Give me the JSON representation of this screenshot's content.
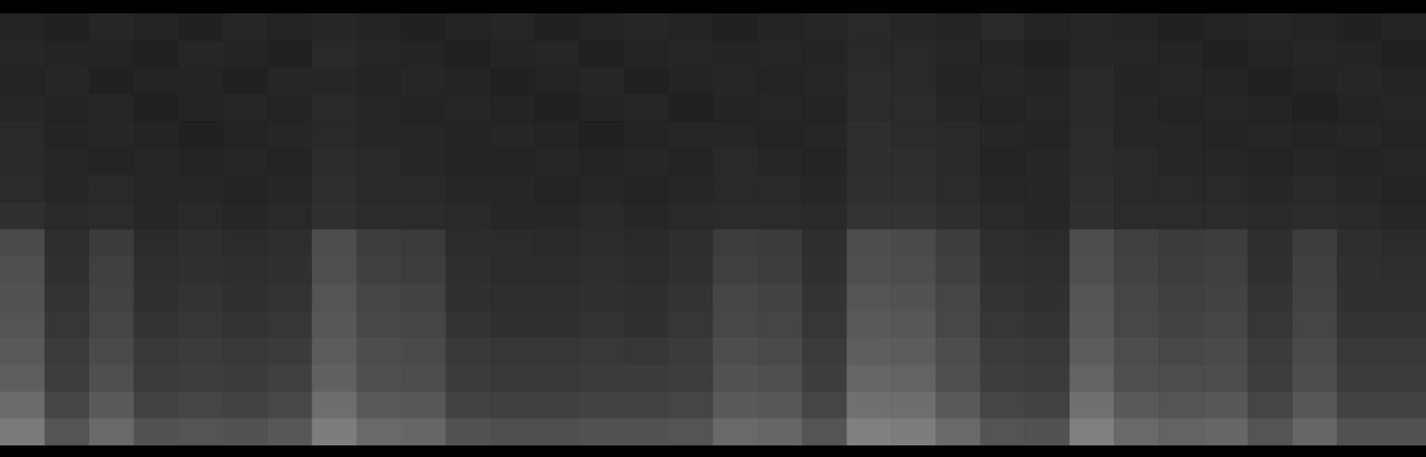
{
  "chart_data": {
    "type": "heatmap",
    "tick_labels": false,
    "zlim": [
      0,
      100
    ],
    "cells": [
      [
        14,
        13,
        15,
        14,
        13,
        15,
        14,
        15,
        14,
        13,
        14,
        15,
        13,
        14,
        15,
        14,
        13,
        14,
        15,
        16,
        15,
        14,
        16,
        14,
        15,
        14,
        13,
        14,
        15,
        14,
        13,
        14
      ],
      [
        15,
        14,
        14,
        13,
        15,
        14,
        13,
        16,
        15,
        14,
        13,
        14,
        15,
        13,
        14,
        15,
        14,
        15,
        14,
        16,
        16,
        15,
        14,
        13,
        15,
        15,
        14,
        13,
        14,
        15,
        14,
        13
      ],
      [
        14,
        15,
        13,
        14,
        14,
        13,
        15,
        15,
        14,
        15,
        14,
        13,
        14,
        15,
        13,
        14,
        15,
        14,
        15,
        17,
        16,
        14,
        15,
        14,
        16,
        14,
        15,
        14,
        13,
        14,
        15,
        14
      ],
      [
        15,
        14,
        15,
        13,
        14,
        15,
        14,
        16,
        15,
        14,
        15,
        14,
        13,
        14,
        15,
        13,
        14,
        15,
        14,
        17,
        17,
        15,
        14,
        15,
        16,
        15,
        14,
        15,
        14,
        13,
        14,
        15
      ],
      [
        16,
        14,
        15,
        14,
        13,
        14,
        15,
        16,
        15,
        15,
        14,
        15,
        14,
        13,
        14,
        15,
        15,
        14,
        15,
        18,
        17,
        16,
        15,
        14,
        17,
        15,
        15,
        14,
        15,
        14,
        15,
        14
      ],
      [
        16,
        15,
        14,
        15,
        14,
        15,
        14,
        17,
        16,
        15,
        14,
        14,
        15,
        14,
        15,
        14,
        16,
        15,
        14,
        18,
        18,
        16,
        14,
        15,
        17,
        16,
        15,
        15,
        14,
        15,
        14,
        15
      ],
      [
        17,
        15,
        16,
        15,
        15,
        14,
        15,
        18,
        16,
        16,
        15,
        15,
        14,
        15,
        14,
        15,
        16,
        16,
        15,
        19,
        19,
        17,
        15,
        15,
        18,
        16,
        16,
        16,
        15,
        16,
        15,
        14
      ],
      [
        19,
        16,
        17,
        15,
        16,
        15,
        16,
        19,
        17,
        17,
        16,
        15,
        15,
        16,
        15,
        16,
        17,
        17,
        16,
        20,
        20,
        18,
        16,
        15,
        19,
        17,
        17,
        17,
        16,
        17,
        16,
        15
      ],
      [
        29,
        18,
        23,
        17,
        18,
        17,
        18,
        30,
        24,
        23,
        17,
        17,
        16,
        17,
        16,
        18,
        24,
        23,
        18,
        30,
        29,
        24,
        18,
        17,
        30,
        25,
        23,
        24,
        18,
        24,
        18,
        17
      ],
      [
        31,
        19,
        25,
        18,
        19,
        18,
        19,
        31,
        25,
        24,
        18,
        17,
        17,
        18,
        17,
        19,
        25,
        24,
        19,
        31,
        30,
        25,
        19,
        18,
        31,
        26,
        24,
        25,
        19,
        25,
        19,
        18
      ],
      [
        32,
        20,
        26,
        19,
        20,
        19,
        20,
        33,
        27,
        26,
        19,
        18,
        18,
        19,
        18,
        20,
        27,
        26,
        20,
        33,
        32,
        27,
        20,
        19,
        33,
        27,
        25,
        26,
        20,
        26,
        19,
        19
      ],
      [
        33,
        21,
        27,
        20,
        21,
        20,
        21,
        34,
        28,
        27,
        20,
        19,
        19,
        20,
        19,
        21,
        28,
        27,
        21,
        35,
        34,
        28,
        21,
        20,
        34,
        28,
        26,
        27,
        21,
        27,
        20,
        20
      ],
      [
        35,
        23,
        29,
        22,
        23,
        22,
        23,
        36,
        30,
        29,
        22,
        21,
        21,
        22,
        21,
        23,
        30,
        29,
        23,
        37,
        36,
        30,
        23,
        22,
        36,
        30,
        28,
        29,
        23,
        29,
        22,
        22
      ],
      [
        37,
        24,
        31,
        23,
        24,
        23,
        25,
        38,
        31,
        30,
        23,
        22,
        22,
        23,
        23,
        24,
        32,
        31,
        24,
        40,
        39,
        31,
        24,
        23,
        39,
        31,
        30,
        30,
        24,
        30,
        23,
        23
      ],
      [
        42,
        27,
        35,
        26,
        27,
        26,
        28,
        43,
        35,
        34,
        26,
        25,
        25,
        26,
        26,
        27,
        35,
        34,
        27,
        44,
        43,
        35,
        27,
        26,
        44,
        35,
        33,
        34,
        27,
        34,
        26,
        26
      ],
      [
        48,
        33,
        41,
        32,
        33,
        32,
        34,
        49,
        41,
        40,
        32,
        31,
        31,
        32,
        32,
        33,
        41,
        40,
        33,
        50,
        49,
        41,
        33,
        32,
        50,
        41,
        39,
        40,
        33,
        40,
        32,
        32
      ]
    ]
  }
}
